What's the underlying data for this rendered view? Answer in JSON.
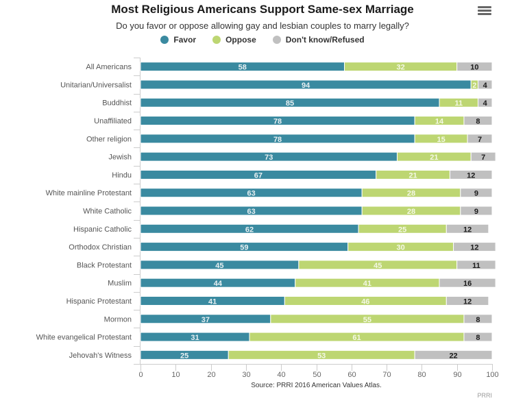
{
  "header": {
    "menu_icon": "hamburger-menu-icon"
  },
  "chart_data": {
    "type": "bar",
    "orientation": "horizontal",
    "stacked": true,
    "title": "Most Religious Americans Support Same-sex Marriage",
    "subtitle": "Do you favor or oppose allowing gay and lesbian couples to marry legally?",
    "xlabel": "",
    "ylabel": "",
    "xlim": [
      0,
      100
    ],
    "xticks": [
      0,
      10,
      20,
      30,
      40,
      50,
      60,
      70,
      80,
      90,
      100
    ],
    "grid": false,
    "legend_position": "top-center",
    "categories": [
      "All Americans",
      "Unitarian/Universalist",
      "Buddhist",
      "Unaffiliated",
      "Other religion",
      "Jewish",
      "Hindu",
      "White mainline Protestant",
      "White Catholic",
      "Hispanic Catholic",
      "Orthodox Christian",
      "Black Protestant",
      "Muslim",
      "Hispanic Protestant",
      "Mormon",
      "White evangelical Protestant",
      "Jehovah's Witness"
    ],
    "series": [
      {
        "name": "Favor",
        "color": "#3a8aa0",
        "label_color": "#e8f0f2",
        "values": [
          58,
          94,
          85,
          78,
          78,
          73,
          67,
          63,
          63,
          62,
          59,
          45,
          44,
          41,
          37,
          31,
          25
        ]
      },
      {
        "name": "Oppose",
        "color": "#bdd672",
        "label_color": "#f4f8e6",
        "values": [
          32,
          2,
          11,
          14,
          15,
          21,
          21,
          28,
          28,
          25,
          30,
          45,
          41,
          46,
          55,
          61,
          53
        ]
      },
      {
        "name": "Don't know/Refused",
        "color": "#c0c0c0",
        "label_color": "#1a1a1a",
        "values": [
          10,
          4,
          4,
          8,
          7,
          7,
          12,
          9,
          9,
          12,
          12,
          11,
          16,
          12,
          8,
          8,
          22
        ]
      }
    ],
    "source": "Source: PRRI 2016 American Values Atlas.",
    "credits": "PRRI"
  }
}
